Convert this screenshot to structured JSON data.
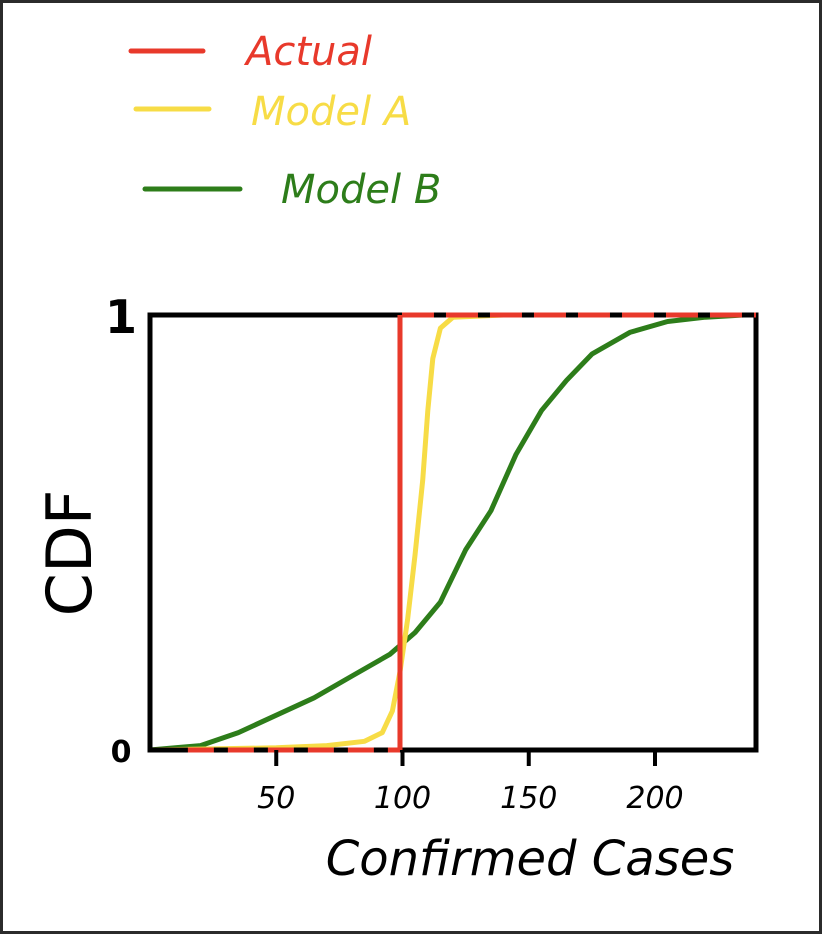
{
  "chart_data": {
    "type": "line",
    "xlabel": "Confirmed Cases",
    "ylabel": "CDF",
    "xlim": [
      0,
      240
    ],
    "ylim": [
      0,
      1
    ],
    "x_ticks": [
      50,
      100,
      150,
      200
    ],
    "x_tick_labels": [
      "50",
      "100",
      "150",
      "200"
    ],
    "y_ticks": [
      0,
      1
    ],
    "y_tick_labels": [
      "0",
      "1"
    ],
    "grid": false,
    "legend_position": "top-left",
    "series": [
      {
        "name": "Actual",
        "color": "#e8392b",
        "points": [
          [
            0,
            0
          ],
          [
            99,
            0
          ],
          [
            99,
            0
          ],
          [
            99,
            1
          ],
          [
            240,
            1
          ]
        ]
      },
      {
        "name": "Model A",
        "color": "#f7dc46",
        "points": [
          [
            0,
            0.0
          ],
          [
            50,
            0.005
          ],
          [
            70,
            0.01
          ],
          [
            85,
            0.02
          ],
          [
            92,
            0.04
          ],
          [
            96,
            0.09
          ],
          [
            99,
            0.18
          ],
          [
            102,
            0.3
          ],
          [
            105,
            0.45
          ],
          [
            108,
            0.62
          ],
          [
            110,
            0.78
          ],
          [
            112,
            0.9
          ],
          [
            115,
            0.97
          ],
          [
            120,
            0.995
          ],
          [
            140,
            1.0
          ],
          [
            200,
            1.0
          ],
          [
            235,
            1.0
          ]
        ]
      },
      {
        "name": "Model B",
        "color": "#2d7d1a",
        "points": [
          [
            0,
            0.0
          ],
          [
            10,
            0.005
          ],
          [
            20,
            0.01
          ],
          [
            35,
            0.04
          ],
          [
            50,
            0.08
          ],
          [
            65,
            0.12
          ],
          [
            80,
            0.17
          ],
          [
            95,
            0.22
          ],
          [
            105,
            0.27
          ],
          [
            115,
            0.34
          ],
          [
            125,
            0.46
          ],
          [
            135,
            0.55
          ],
          [
            145,
            0.68
          ],
          [
            155,
            0.78
          ],
          [
            165,
            0.85
          ],
          [
            175,
            0.91
          ],
          [
            190,
            0.96
          ],
          [
            205,
            0.985
          ],
          [
            220,
            0.995
          ],
          [
            235,
            1.0
          ]
        ]
      }
    ]
  }
}
